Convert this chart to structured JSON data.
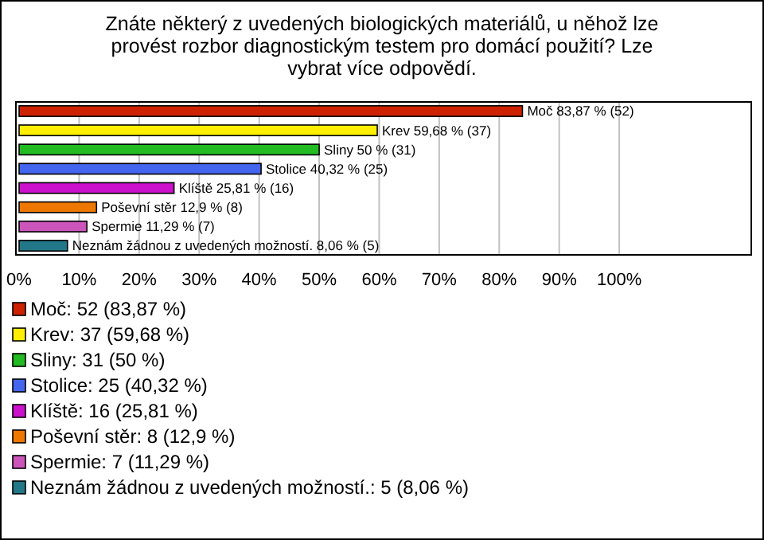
{
  "chart_data": {
    "type": "bar",
    "orientation": "horizontal",
    "title": "Znáte některý z uvedených biologických materiálů, u něhož lze provést rozbor diagnostickým testem pro domácí použití? Lze vybrat více odpovědí.",
    "categories": [
      null
    ],
    "series": [
      {
        "name": "Moč: 52 (83,87 %)",
        "color": "#cc2200",
        "values": [
          83.87
        ],
        "value_labels": [
          "Moč 83,87 % (52)"
        ]
      },
      {
        "name": "Krev: 37 (59,68 %)",
        "color": "#ffee00",
        "values": [
          59.68
        ],
        "value_labels": [
          "Krev 59,68 % (37)"
        ]
      },
      {
        "name": "Sliny: 31 (50 %)",
        "color": "#22bb22",
        "values": [
          50
        ],
        "value_labels": [
          "Sliny 50 % (31)"
        ]
      },
      {
        "name": "Stolice: 25 (40,32 %)",
        "color": "#4466ee",
        "values": [
          40.32
        ],
        "value_labels": [
          "Stolice 40,32 % (25)"
        ]
      },
      {
        "name": "Klíště: 16 (25,81 %)",
        "color": "#cc11cc",
        "values": [
          25.81
        ],
        "value_labels": [
          "Klíště 25,81 % (16)"
        ]
      },
      {
        "name": "Poševní stěr: 8 (12,9 %)",
        "color": "#ee7700",
        "values": [
          12.9
        ],
        "value_labels": [
          "Poševní stěr 12,9 % (8)"
        ]
      },
      {
        "name": "Spermie: 7 (11,29 %)",
        "color": "#cc55bb",
        "values": [
          11.29
        ],
        "value_labels": [
          "Spermie 11,29 % (7)"
        ]
      },
      {
        "name": "Neznám žádnou z uvedených možností.: 5 (8,06 %)",
        "color": "#227788",
        "values": [
          8.06
        ],
        "value_labels": [
          "Neznám žádnou z uvedených možností. 8,06 % (5)"
        ]
      }
    ],
    "xlim": [
      0,
      122
    ],
    "xticks": [
      {
        "value": 0,
        "label": "0%"
      },
      {
        "value": 10,
        "label": "10%"
      },
      {
        "value": 20,
        "label": "20%"
      },
      {
        "value": 30,
        "label": "30%"
      },
      {
        "value": 40,
        "label": "40%"
      },
      {
        "value": 50,
        "label": "50%"
      },
      {
        "value": 60,
        "label": "60%"
      },
      {
        "value": 70,
        "label": "70%"
      },
      {
        "value": 80,
        "label": "80%"
      },
      {
        "value": 90,
        "label": "90%"
      },
      {
        "value": 100,
        "label": "100%"
      }
    ],
    "grid": "x",
    "legend": "bottom"
  }
}
